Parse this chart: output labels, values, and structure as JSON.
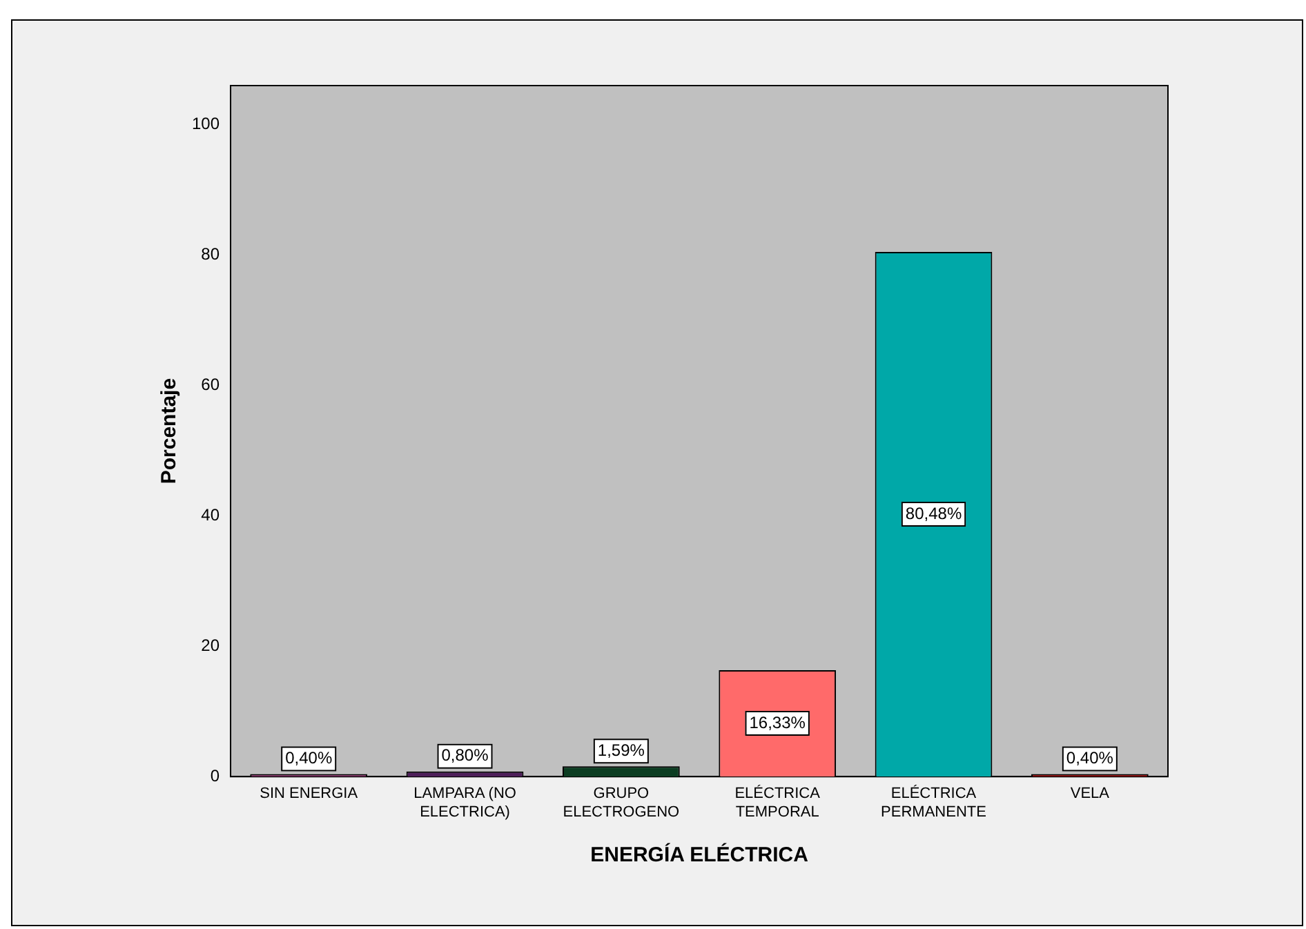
{
  "chart_data": {
    "type": "bar",
    "xlabel": "ENERGÍA ELÉCTRICA",
    "ylabel": "Porcentaje",
    "categories": [
      "SIN ENERGIA",
      "LAMPARA (NO\nELECTRICA)",
      "GRUPO\nELECTROGENO",
      "ELÉCTRICA\nTEMPORAL",
      "ELÉCTRICA\nPERMANENTE",
      "VELA"
    ],
    "values": [
      0.4,
      0.8,
      1.59,
      16.33,
      80.48,
      0.4
    ],
    "value_labels": [
      "0,40%",
      "0,80%",
      "1,59%",
      "16,33%",
      "80,48%",
      "0,40%"
    ],
    "colors": [
      "#7a2a5e",
      "#4e1f5a",
      "#0c3d22",
      "#ff6a6a",
      "#00a8a8",
      "#8a0000"
    ],
    "ylim": [
      0,
      106
    ],
    "yticks": [
      0,
      20,
      40,
      60,
      80,
      100
    ],
    "grid": false,
    "legend": false
  }
}
